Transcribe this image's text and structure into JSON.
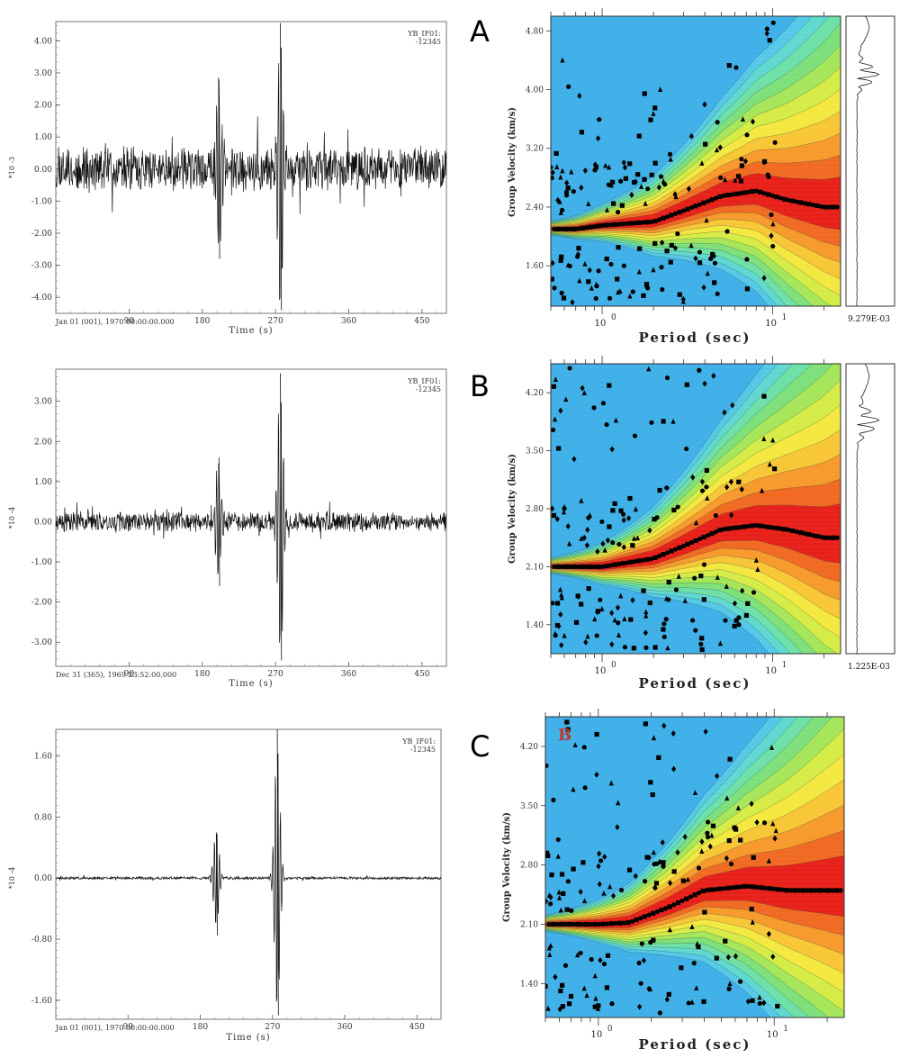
{
  "panel_letters": [
    "A",
    "B",
    "C"
  ],
  "inset_letter": "B",
  "chart_data": [
    {
      "type": "line",
      "kind": "seismogram",
      "station_line1": "YB_IF01:",
      "station_line2": "-12345",
      "multiplier_label": "*10 -3",
      "date_label": "Jan 01 (001), 1970 00:00:00.000",
      "xlabel": "Time (s)",
      "xticks": [
        "90",
        "180",
        "270",
        "360",
        "450"
      ],
      "yticks": [
        "4.00",
        "3.00",
        "2.00",
        "1.00",
        "0.00",
        "-1.00",
        "-2.00",
        "-3.00",
        "-4.00"
      ],
      "ylim": [
        -4.5,
        4.6
      ],
      "xlim": [
        0,
        480
      ],
      "noise_amplitude": 0.75,
      "arrivals": [
        {
          "t": 200,
          "peak": 2.85,
          "trough": -2.8
        },
        {
          "t": 276,
          "peak": 4.55,
          "trough": -4.4
        }
      ]
    },
    {
      "type": "heatmap",
      "kind": "dispersion",
      "xlabel": "Period (sec)",
      "ylabel": "Group Velocity (km/s)",
      "xscale": "log",
      "xticks": [
        "10",
        "10"
      ],
      "xtick_exponents": [
        "0",
        "1"
      ],
      "yticks": [
        "4.80",
        "4.00",
        "3.20",
        "2.40",
        "1.60"
      ],
      "ylim": [
        1.05,
        5.0
      ],
      "xlim": [
        0.5,
        25
      ],
      "ridge_curve": [
        [
          0.7,
          2.1
        ],
        [
          1.0,
          2.15
        ],
        [
          2.0,
          2.2
        ],
        [
          3.0,
          2.35
        ],
        [
          5.0,
          2.55
        ],
        [
          8.0,
          2.62
        ],
        [
          12.0,
          2.5
        ],
        [
          20.0,
          2.4
        ]
      ],
      "amplitude_label": "9.279E-03"
    },
    {
      "type": "line",
      "kind": "seismogram",
      "station_line1": "YB_IF01:",
      "station_line2": "-12345",
      "multiplier_label": "*10 -4",
      "date_label": "Dec 31 (365), 1969 23:52:00.000",
      "xlabel": "Time (s)",
      "xticks": [
        "90",
        "180",
        "270",
        "360",
        "450"
      ],
      "yticks": [
        "3.00",
        "2.00",
        "1.00",
        "0.00",
        "-1.00",
        "-2.00",
        "-3.00"
      ],
      "ylim": [
        -3.6,
        3.8
      ],
      "xlim": [
        0,
        480
      ],
      "noise_amplitude": 0.28,
      "arrivals": [
        {
          "t": 200,
          "peak": 1.45,
          "trough": -1.6
        },
        {
          "t": 276,
          "peak": 3.7,
          "trough": -3.45
        }
      ]
    },
    {
      "type": "heatmap",
      "kind": "dispersion",
      "xlabel": "Period (sec)",
      "ylabel": "Group Velocity (km/s)",
      "xscale": "log",
      "xticks": [
        "10",
        "10"
      ],
      "xtick_exponents": [
        "0",
        "1"
      ],
      "yticks": [
        "4.20",
        "3.50",
        "2.80",
        "2.10",
        "1.40"
      ],
      "ylim": [
        1.05,
        4.55
      ],
      "xlim": [
        0.5,
        25
      ],
      "ridge_curve": [
        [
          0.5,
          2.1
        ],
        [
          1.0,
          2.1
        ],
        [
          2.0,
          2.2
        ],
        [
          3.0,
          2.35
        ],
        [
          5.0,
          2.55
        ],
        [
          8.0,
          2.6
        ],
        [
          12.0,
          2.55
        ],
        [
          20.0,
          2.45
        ]
      ],
      "amplitude_label": "1.225E-03"
    },
    {
      "type": "line",
      "kind": "seismogram",
      "station_line1": "YB_IF01:",
      "station_line2": "-12345",
      "multiplier_label": "*10 -4",
      "date_label": "Jan 01 (001), 1970 00:00:00.000",
      "xlabel": "Time (s)",
      "xticks": [
        "90",
        "180",
        "270",
        "360",
        "450"
      ],
      "yticks": [
        "1.60",
        "0.80",
        "0.00",
        "-0.80",
        "-1.60"
      ],
      "ylim": [
        -1.85,
        1.95
      ],
      "xlim": [
        0,
        480
      ],
      "noise_amplitude": 0.02,
      "arrivals": [
        {
          "t": 200,
          "peak": 0.6,
          "trough": -0.75
        },
        {
          "t": 276,
          "peak": 1.95,
          "trough": -1.8
        }
      ]
    },
    {
      "type": "heatmap",
      "kind": "dispersion",
      "xlabel": "Period (sec)",
      "ylabel": "Group Velocity (km/s)",
      "xscale": "log",
      "xticks": [
        "10",
        "10"
      ],
      "xtick_exponents": [
        "0",
        "1"
      ],
      "yticks": [
        "4.20",
        "3.50",
        "2.80",
        "2.10",
        "1.40"
      ],
      "ylim": [
        1.0,
        4.55
      ],
      "xlim": [
        0.5,
        25
      ],
      "ridge_curve": [
        [
          0.5,
          2.1
        ],
        [
          1.0,
          2.1
        ],
        [
          1.5,
          2.12
        ],
        [
          2.5,
          2.3
        ],
        [
          4.0,
          2.5
        ],
        [
          7.0,
          2.55
        ],
        [
          12.0,
          2.5
        ],
        [
          20.0,
          2.5
        ]
      ],
      "amplitude_label": ""
    }
  ],
  "colors": {
    "background_blue": "#3fb0e8",
    "ridge_red": "#e8201a",
    "inset_letter": "#c0392b"
  }
}
